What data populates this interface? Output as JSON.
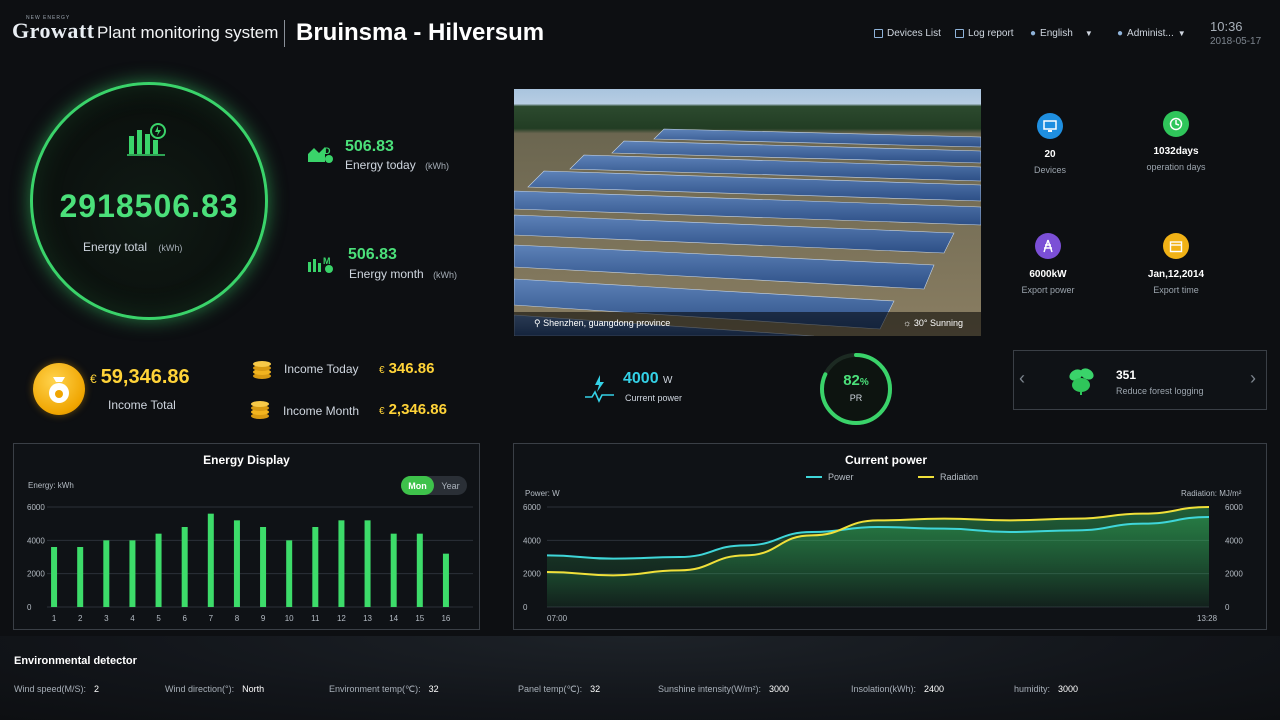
{
  "header": {
    "logo_text": "Growatt",
    "logo_sub": "NEW ENERGY",
    "app_title": "Plant monitoring system",
    "plant_name": "Bruinsma - Hilversum",
    "devices_list": "Devices List",
    "log_report": "Log report",
    "language": "English",
    "user": "Administ...",
    "time": "10:36",
    "date": "2018-05-17"
  },
  "energy": {
    "total_value": "2918506.83",
    "total_label": "Energy total",
    "unit": "(kWh)",
    "today_value": "506.83",
    "today_label": "Energy today",
    "month_value": "506.83",
    "month_label": "Energy month"
  },
  "income": {
    "currency": "€",
    "total_value": "59,346.86",
    "total_label": "Income Total",
    "today_label": "Income Today",
    "today_value": "346.86",
    "month_label": "Income Month",
    "month_value": "2,346.86"
  },
  "photo": {
    "location": "Shenzhen, guangdong province",
    "weather": "30° Sunning"
  },
  "stats": {
    "devices_value": "20",
    "devices_label": "Devices",
    "operation_value": "1032days",
    "operation_label": "operation days",
    "export_power_value": "6000kW",
    "export_power_label": "Export power",
    "export_time_value": "Jan,12,2014",
    "export_time_label": "Export time"
  },
  "current_power": {
    "value": "4000",
    "unit": "W",
    "label": "Current power"
  },
  "pr": {
    "value": "82",
    "percent_sign": "%",
    "label": "PR",
    "fraction": 0.82
  },
  "forest": {
    "value": "351",
    "label": "Reduce forest logging"
  },
  "energy_display": {
    "title": "Energy Display",
    "axis_caption": "Energy:  kWh",
    "toggle_on": "Mon",
    "toggle_off": "Year"
  },
  "power_chart": {
    "title": "Current power",
    "left_caption": "Power:  W",
    "right_caption": "Radiation:  MJ/m²",
    "legend_power": "Power",
    "legend_radiation": "Radiation"
  },
  "colors": {
    "accent_green": "#4be07a",
    "bar_green": "#3ddc6a",
    "power_cyan": "#3fd6d9",
    "radiation_yellow": "#f0e03a",
    "income_gold": "#ffd338"
  },
  "chart_data": [
    {
      "type": "bar",
      "title": "Energy Display",
      "ylabel": "Energy: kWh",
      "categories": [
        "1",
        "2",
        "3",
        "4",
        "5",
        "6",
        "7",
        "8",
        "9",
        "10",
        "11",
        "12",
        "13",
        "14",
        "15",
        "16"
      ],
      "values": [
        3600,
        3600,
        4000,
        4000,
        4400,
        4800,
        5600,
        5200,
        4800,
        4000,
        4800,
        5200,
        5200,
        4400,
        4400,
        3200
      ],
      "ylim": [
        0,
        6000
      ],
      "yticks": [
        "0",
        "2000",
        "4000",
        "6000"
      ],
      "grid": true
    },
    {
      "type": "area",
      "title": "Current power",
      "xlabel_start": "07:00",
      "xlabel_end": "13:28",
      "ylim": [
        0,
        6000
      ],
      "yticks": [
        "0",
        "2000",
        "4000",
        "6000"
      ],
      "legend": "top-center",
      "series": [
        {
          "name": "Power",
          "x": [
            0,
            0.1,
            0.2,
            0.3,
            0.4,
            0.5,
            0.6,
            0.7,
            0.8,
            0.9,
            1.0
          ],
          "values": [
            3100,
            2900,
            3000,
            3700,
            4500,
            4800,
            4700,
            4500,
            4600,
            5000,
            5400
          ]
        },
        {
          "name": "Radiation",
          "x": [
            0,
            0.1,
            0.2,
            0.3,
            0.4,
            0.5,
            0.6,
            0.7,
            0.8,
            0.9,
            1.0
          ],
          "values": [
            2100,
            1900,
            2200,
            3100,
            4300,
            5200,
            5300,
            5200,
            5300,
            5600,
            6000
          ]
        }
      ]
    }
  ],
  "environment": {
    "title": "Environmental detector",
    "items": [
      {
        "label": "Wind speed(M/S):",
        "value": "2"
      },
      {
        "label": "Wind direction(°):",
        "value": "North"
      },
      {
        "label": "Environment temp(℃):",
        "value": "32"
      },
      {
        "label": "Panel temp(℃):",
        "value": "32"
      },
      {
        "label": "Sunshine intensity(W/m²):",
        "value": "3000"
      },
      {
        "label": "Insolation(kWh):",
        "value": "2400"
      },
      {
        "label": "humidity:",
        "value": "3000"
      }
    ]
  }
}
